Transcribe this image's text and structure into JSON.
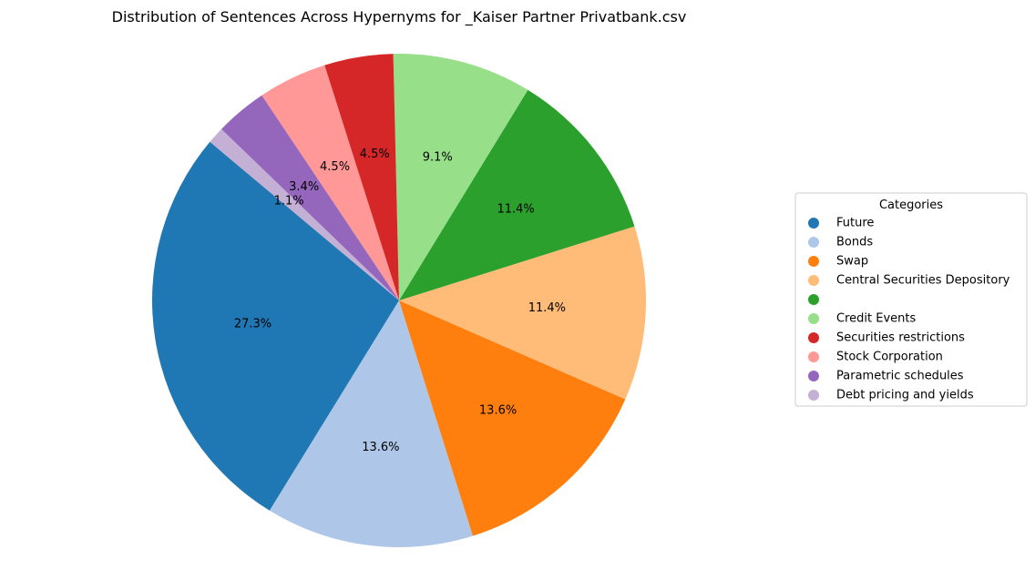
{
  "chart_data": {
    "type": "pie",
    "title": "Distribution of Sentences Across Hypernyms for _Kaiser Partner Privatbank.csv",
    "legend_title": "Categories",
    "legend_position": "right",
    "start_angle_deg": 140,
    "direction": "counterclockwise",
    "slices": [
      {
        "label": "Future",
        "value": 27.3,
        "pct_label": "27.3%",
        "color": "#1f77b4"
      },
      {
        "label": "Bonds",
        "value": 13.6,
        "pct_label": "13.6%",
        "color": "#aec7e8"
      },
      {
        "label": "Swap",
        "value": 13.6,
        "pct_label": "13.6%",
        "color": "#ff7f0e"
      },
      {
        "label": "Central Securities Depository",
        "value": 11.4,
        "pct_label": "11.4%",
        "color": "#ffbb78"
      },
      {
        "label": "",
        "value": 11.4,
        "pct_label": "11.4%",
        "color": "#2ca02c"
      },
      {
        "label": "Credit Events",
        "value": 9.1,
        "pct_label": "9.1%",
        "color": "#98df8a"
      },
      {
        "label": "Securities restrictions",
        "value": 4.5,
        "pct_label": "4.5%",
        "color": "#d62728"
      },
      {
        "label": "Stock Corporation",
        "value": 4.5,
        "pct_label": "4.5%",
        "color": "#ff9896"
      },
      {
        "label": "Parametric schedules",
        "value": 3.4,
        "pct_label": "3.4%",
        "color": "#9467bd"
      },
      {
        "label": "Debt pricing and yields",
        "value": 1.1,
        "pct_label": "1.1%",
        "color": "#c5b0d5"
      }
    ]
  }
}
